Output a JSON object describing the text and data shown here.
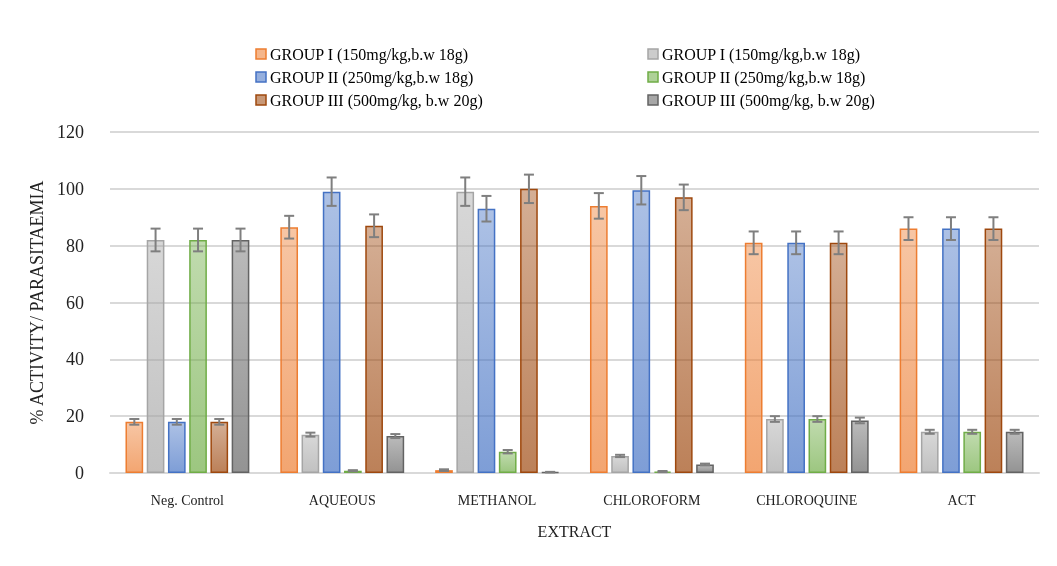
{
  "chart_data": {
    "type": "bar",
    "xlabel": "EXTRACT",
    "ylabel": "% ACTIVITY/ PARASITAEMIA",
    "categories": [
      "Neg. Control",
      "AQUEOUS",
      "METHANOL",
      "CHLOROFORM",
      "CHLOROQUINE",
      "ACT"
    ],
    "series": [
      {
        "name": "GROUP I (150mg/kg,b.w 18g)",
        "color": "#ed7d31",
        "values": [
          18,
          86.5,
          1,
          94,
          81,
          86
        ],
        "errors": [
          1,
          4,
          0.3,
          4.5,
          4,
          4
        ]
      },
      {
        "name": "GROUP I (150mg/kg,b.w 18g)",
        "color": "#a5a5a5",
        "values": [
          82,
          13.5,
          99,
          6,
          19,
          14.5
        ],
        "errors": [
          4,
          0.7,
          5,
          0.4,
          1,
          0.7
        ]
      },
      {
        "name": "GROUP II (250mg/kg,b.w 18g)",
        "color": "#4472c4",
        "values": [
          18,
          99,
          93,
          99.5,
          81,
          86
        ],
        "errors": [
          1,
          5,
          4.5,
          5,
          4,
          4
        ]
      },
      {
        "name": "GROUP II (250mg/kg,b.w 18g)",
        "color": "#70ad47",
        "values": [
          82,
          0.8,
          7.5,
          0.5,
          19,
          14.5
        ],
        "errors": [
          4,
          0.2,
          0.6,
          0.2,
          1,
          0.7
        ]
      },
      {
        "name": "GROUP III (500mg/kg, b.w 20g)",
        "color": "#9e480e",
        "values": [
          18,
          87,
          100,
          97,
          81,
          86
        ],
        "errors": [
          1,
          4,
          5,
          4.5,
          4,
          4
        ]
      },
      {
        "name": "GROUP III (500mg/kg, b.w 20g)",
        "color": "#636363",
        "values": [
          82,
          13,
          0.3,
          3,
          18.5,
          14.5
        ],
        "errors": [
          4,
          0.7,
          0.1,
          0.3,
          1,
          0.7
        ]
      }
    ],
    "ylim": [
      0,
      120
    ],
    "yticks": [
      0,
      20,
      40,
      60,
      80,
      100,
      120
    ],
    "grid": "y",
    "legend": "top"
  }
}
